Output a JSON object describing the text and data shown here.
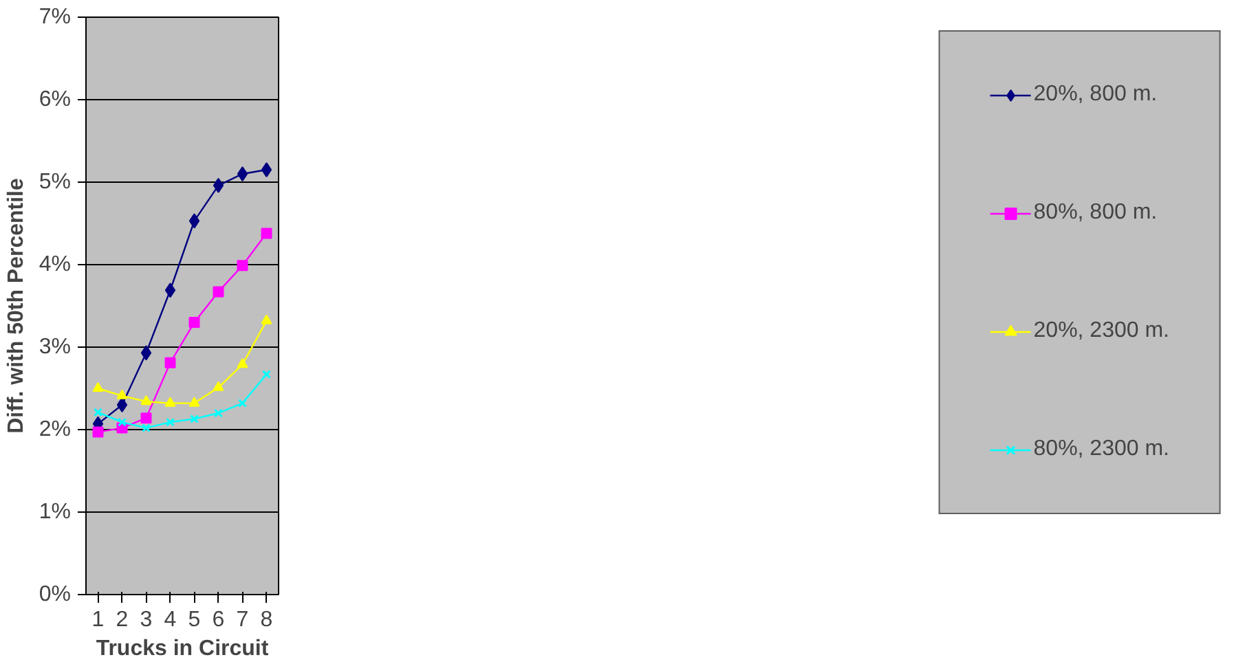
{
  "chart_data": {
    "type": "line",
    "xlabel": "Trucks in Circuit",
    "ylabel": "Diff. with 50th Percentile",
    "x": [
      1,
      2,
      3,
      4,
      5,
      6,
      7,
      8
    ],
    "xlim": [
      0.5,
      8.5
    ],
    "xticks": [
      1,
      2,
      3,
      4,
      5,
      6,
      7,
      8
    ],
    "ylim": [
      0,
      7
    ],
    "yticks": [
      {
        "value": 0,
        "label": "0%"
      },
      {
        "value": 1,
        "label": "1%"
      },
      {
        "value": 2,
        "label": "2%"
      },
      {
        "value": 3,
        "label": "3%"
      },
      {
        "value": 4,
        "label": "4%"
      },
      {
        "value": 5,
        "label": "5%"
      },
      {
        "value": 6,
        "label": "6%"
      },
      {
        "value": 7,
        "label": "7%"
      }
    ],
    "grid": "y",
    "legend": "right",
    "line_style": "solid",
    "series": [
      {
        "name": "20%, 800 m.",
        "color": "#000080",
        "marker": "diamond",
        "values": [
          2.07,
          2.3,
          2.93,
          3.69,
          4.53,
          4.96,
          5.1,
          5.15
        ]
      },
      {
        "name": "80%, 800 m.",
        "color": "#ff00ff",
        "marker": "square",
        "values": [
          1.97,
          2.02,
          2.14,
          2.81,
          3.3,
          3.67,
          3.99,
          4.38
        ]
      },
      {
        "name": "20%, 2300 m.",
        "color": "#ffff00",
        "marker": "triangle",
        "values": [
          2.5,
          2.41,
          2.34,
          2.32,
          2.32,
          2.51,
          2.79,
          3.32
        ]
      },
      {
        "name": "80%, 2300 m.",
        "color": "#00ffff",
        "marker": "cross",
        "values": [
          2.21,
          2.09,
          2.02,
          2.09,
          2.13,
          2.2,
          2.32,
          2.67
        ]
      }
    ]
  }
}
